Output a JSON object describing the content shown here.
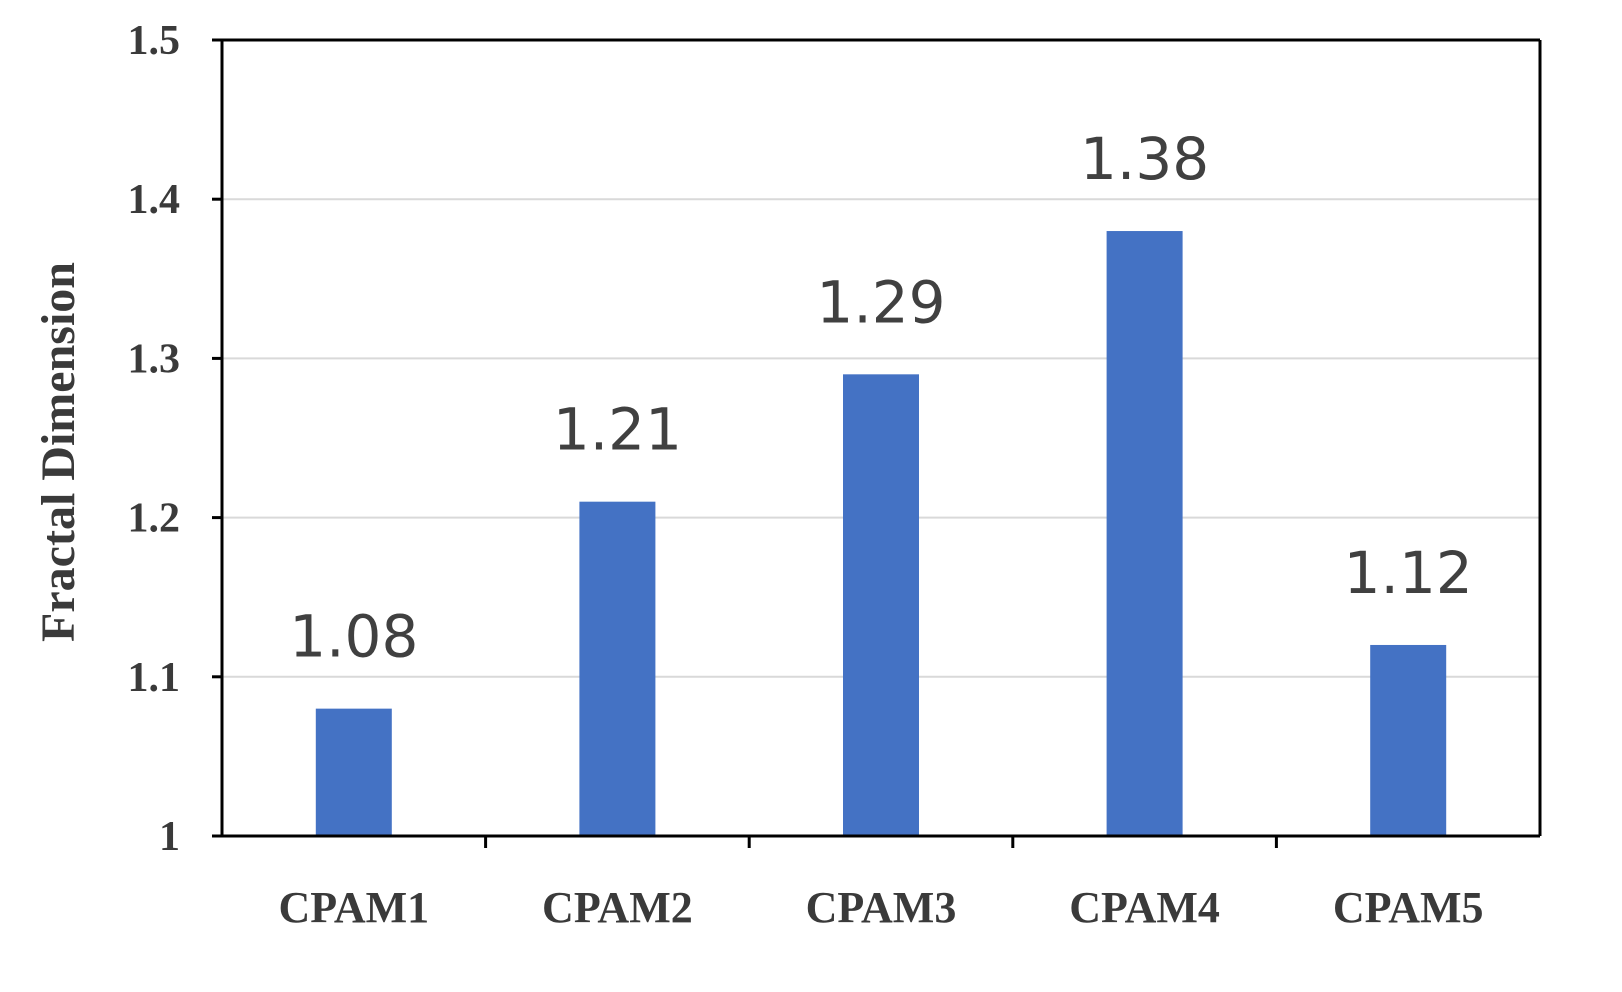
{
  "colors": {
    "bar": "#4472C4",
    "grid": "#d9d9d9",
    "axis": "#000000"
  },
  "chart_data": {
    "type": "bar",
    "title": "",
    "xlabel": "",
    "ylabel": "Fractal Dimension",
    "categories": [
      "CPAM1",
      "CPAM2",
      "CPAM3",
      "CPAM4",
      "CPAM5"
    ],
    "values": [
      1.08,
      1.21,
      1.29,
      1.38,
      1.12
    ],
    "data_labels": [
      "1.08",
      "1.21",
      "1.29",
      "1.38",
      "1.12"
    ],
    "ylim": [
      1,
      1.5
    ],
    "yticks": [
      1,
      1.1,
      1.2,
      1.3,
      1.4,
      1.5
    ],
    "ytick_labels": [
      "1",
      "1.1",
      "1.2",
      "1.3",
      "1.4",
      "1.5"
    ],
    "grid": true,
    "legend": "none"
  }
}
